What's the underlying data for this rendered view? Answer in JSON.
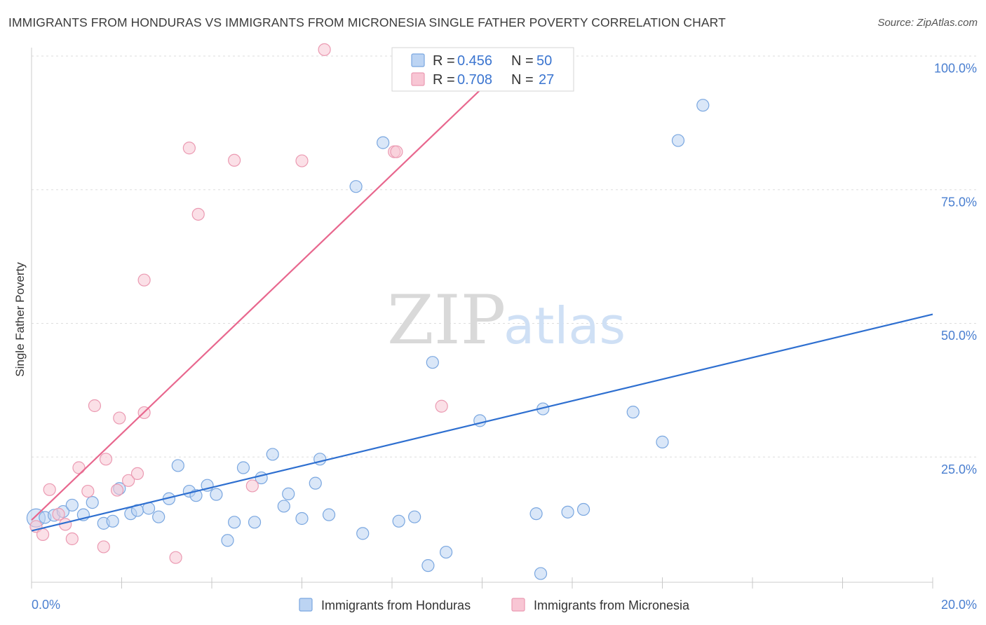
{
  "header": {
    "title": "IMMIGRANTS FROM HONDURAS VS IMMIGRANTS FROM MICRONESIA SINGLE FATHER POVERTY CORRELATION CHART",
    "source": "Source: ZipAtlas.com"
  },
  "watermark": {
    "part1": "ZIP",
    "part2": "atlas"
  },
  "legend": {
    "r_label": "R =",
    "n_label": "N =",
    "series": [
      {
        "r": "0.456",
        "n": "50"
      },
      {
        "r": "0.708",
        "n": "27"
      }
    ]
  },
  "colors": {
    "honduras_fill": "#bcd4f3",
    "honduras_stroke": "#7aa7e0",
    "honduras_line": "#2e6fd0",
    "micronesia_fill": "#f8c6d4",
    "micronesia_stroke": "#eb9ab2",
    "micronesia_line": "#e8678e",
    "tick_text": "#4a7fd0",
    "grid": "#dddddd"
  },
  "chart_data": {
    "type": "scatter",
    "ylabel": "Single Father Poverty",
    "xlim": [
      0,
      20
    ],
    "ylim": [
      0,
      100
    ],
    "x_tick_labels": [
      "0.0%",
      "20.0%"
    ],
    "y_tick_labels": [
      "100.0%",
      "75.0%",
      "50.0%",
      "25.0%"
    ],
    "y_tick_values": [
      100,
      75,
      50,
      25
    ],
    "series": [
      {
        "name": "Immigrants from Honduras",
        "color": "#bcd4f3",
        "trend": {
          "x": [
            0,
            20
          ],
          "y": [
            11.2,
            51.7
          ]
        },
        "points": [
          {
            "x": 0.1,
            "y": 13.6,
            "big": true
          },
          {
            "x": 0.3,
            "y": 13.7
          },
          {
            "x": 0.5,
            "y": 14.1
          },
          {
            "x": 0.7,
            "y": 14.8
          },
          {
            "x": 0.9,
            "y": 16.0
          },
          {
            "x": 1.15,
            "y": 14.2
          },
          {
            "x": 1.35,
            "y": 16.5
          },
          {
            "x": 1.6,
            "y": 12.6
          },
          {
            "x": 1.8,
            "y": 13.0
          },
          {
            "x": 1.95,
            "y": 19.1
          },
          {
            "x": 2.2,
            "y": 14.4
          },
          {
            "x": 2.35,
            "y": 15.0
          },
          {
            "x": 2.6,
            "y": 15.4
          },
          {
            "x": 2.82,
            "y": 13.8
          },
          {
            "x": 3.05,
            "y": 17.2
          },
          {
            "x": 3.25,
            "y": 23.4
          },
          {
            "x": 3.5,
            "y": 18.6
          },
          {
            "x": 3.65,
            "y": 17.8
          },
          {
            "x": 3.9,
            "y": 19.7
          },
          {
            "x": 4.1,
            "y": 18.0
          },
          {
            "x": 4.35,
            "y": 9.4
          },
          {
            "x": 4.5,
            "y": 12.8
          },
          {
            "x": 4.7,
            "y": 23.0
          },
          {
            "x": 4.95,
            "y": 12.8
          },
          {
            "x": 5.1,
            "y": 21.1
          },
          {
            "x": 5.35,
            "y": 25.5
          },
          {
            "x": 5.6,
            "y": 15.8
          },
          {
            "x": 5.7,
            "y": 18.1
          },
          {
            "x": 6.0,
            "y": 13.5
          },
          {
            "x": 6.3,
            "y": 20.1
          },
          {
            "x": 6.4,
            "y": 24.6
          },
          {
            "x": 6.6,
            "y": 14.2
          },
          {
            "x": 7.2,
            "y": 75.6
          },
          {
            "x": 7.35,
            "y": 10.7
          },
          {
            "x": 7.8,
            "y": 83.8
          },
          {
            "x": 8.15,
            "y": 13.0
          },
          {
            "x": 8.5,
            "y": 13.8
          },
          {
            "x": 8.8,
            "y": 4.7
          },
          {
            "x": 8.9,
            "y": 42.7
          },
          {
            "x": 9.2,
            "y": 7.2
          },
          {
            "x": 9.95,
            "y": 31.8
          },
          {
            "x": 11.2,
            "y": 14.4
          },
          {
            "x": 11.3,
            "y": 3.2
          },
          {
            "x": 11.35,
            "y": 34.0
          },
          {
            "x": 11.9,
            "y": 14.7
          },
          {
            "x": 12.25,
            "y": 15.2
          },
          {
            "x": 13.35,
            "y": 33.4
          },
          {
            "x": 14.0,
            "y": 27.8
          },
          {
            "x": 14.35,
            "y": 84.2
          },
          {
            "x": 14.9,
            "y": 90.8
          }
        ]
      },
      {
        "name": "Immigrants from Micronesia",
        "color": "#f8c6d4",
        "trend": {
          "x": [
            0,
            10
          ],
          "y": [
            13.2,
            94.0
          ]
        },
        "points": [
          {
            "x": 0.1,
            "y": 12.0
          },
          {
            "x": 0.25,
            "y": 10.5
          },
          {
            "x": 0.4,
            "y": 18.9
          },
          {
            "x": 0.6,
            "y": 14.3
          },
          {
            "x": 0.75,
            "y": 12.4
          },
          {
            "x": 0.9,
            "y": 9.7
          },
          {
            "x": 1.05,
            "y": 23.0
          },
          {
            "x": 1.25,
            "y": 18.6
          },
          {
            "x": 1.4,
            "y": 34.6
          },
          {
            "x": 1.6,
            "y": 8.2
          },
          {
            "x": 1.65,
            "y": 24.6
          },
          {
            "x": 1.9,
            "y": 18.8
          },
          {
            "x": 1.95,
            "y": 32.3
          },
          {
            "x": 2.15,
            "y": 20.6
          },
          {
            "x": 2.35,
            "y": 21.9
          },
          {
            "x": 2.5,
            "y": 33.3
          },
          {
            "x": 2.5,
            "y": 58.1
          },
          {
            "x": 3.2,
            "y": 6.2
          },
          {
            "x": 3.5,
            "y": 82.8
          },
          {
            "x": 3.7,
            "y": 70.4
          },
          {
            "x": 4.5,
            "y": 80.5
          },
          {
            "x": 4.9,
            "y": 19.6
          },
          {
            "x": 6.0,
            "y": 80.4
          },
          {
            "x": 6.5,
            "y": 101.2
          },
          {
            "x": 8.05,
            "y": 82.1
          },
          {
            "x": 8.1,
            "y": 82.1
          },
          {
            "x": 9.1,
            "y": 34.5
          }
        ]
      }
    ]
  },
  "bottom_legend": {
    "items": [
      "Immigrants from Honduras",
      "Immigrants from Micronesia"
    ]
  }
}
